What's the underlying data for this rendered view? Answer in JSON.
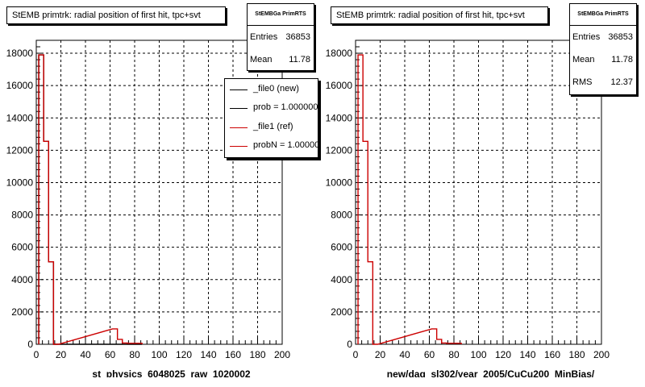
{
  "chart_data": [
    {
      "type": "bar",
      "title": "StEMB primtrk: radial position of first hit, tpc+svt",
      "xlabel": "st_physics_6048025_raw_1020002",
      "ylabel": "",
      "xlim": [
        0,
        200
      ],
      "ylim": [
        0,
        18800
      ],
      "x_ticks": [
        "0",
        "20",
        "40",
        "60",
        "80",
        "100",
        "120",
        "140",
        "160",
        "180",
        "200"
      ],
      "y_ticks": [
        "0",
        "2000",
        "4000",
        "6000",
        "8000",
        "10000",
        "12000",
        "14000",
        "16000",
        "18000"
      ],
      "grid": true,
      "bin_width": 4,
      "series": [
        {
          "name": "_file0 (new)",
          "color": "#000000",
          "x": [
            4,
            8,
            12,
            16,
            64,
            68,
            72,
            76,
            80,
            84
          ],
          "values": [
            17900,
            12550,
            5100,
            0,
            0,
            0,
            0,
            0,
            0,
            0
          ]
        },
        {
          "name": "_file1 (ref)",
          "color": "#cc0000",
          "x": [
            4,
            8,
            12,
            16,
            64,
            68,
            72,
            76,
            80,
            84
          ],
          "values": [
            17900,
            12550,
            5100,
            0,
            950,
            300,
            80,
            60,
            60,
            60
          ]
        }
      ],
      "stats": {
        "name": "StEMBGa PrimRTS",
        "entries_label": "Entries",
        "entries": "36853",
        "mean_label": "Mean",
        "mean": "11.78"
      },
      "legend": {
        "position": "right",
        "entries": [
          {
            "label": "_file0 (new)",
            "color": "#000000"
          },
          {
            "label": "prob = 1.000000",
            "color": "#000000"
          },
          {
            "label": "_file1 (ref)",
            "color": "#cc0000"
          },
          {
            "label": "probN = 1.000000",
            "color": "#cc0000"
          }
        ]
      }
    },
    {
      "type": "bar",
      "title": "StEMB primtrk: radial position of first hit, tpc+svt",
      "xlabel": "new/daq_sl302/year_2005/CuCu200_MinBias/",
      "ylabel": "",
      "xlim": [
        0,
        200
      ],
      "ylim": [
        0,
        18800
      ],
      "x_ticks": [
        "0",
        "20",
        "40",
        "60",
        "80",
        "100",
        "120",
        "140",
        "160",
        "180",
        "200"
      ],
      "y_ticks": [
        "0",
        "2000",
        "4000",
        "6000",
        "8000",
        "10000",
        "12000",
        "14000",
        "16000",
        "18000"
      ],
      "grid": true,
      "bin_width": 4,
      "series": [
        {
          "name": "_file1 (ref)",
          "color": "#cc0000",
          "x": [
            4,
            8,
            12,
            16,
            64,
            68,
            72,
            76,
            80,
            84
          ],
          "values": [
            17900,
            12550,
            5100,
            0,
            950,
            300,
            80,
            60,
            60,
            60
          ]
        }
      ],
      "stats": {
        "name": "StEMBGa PrimRTS",
        "entries_label": "Entries",
        "entries": "36853",
        "mean_label": "Mean",
        "mean": "11.78",
        "rms_label": "RMS",
        "rms": "12.37"
      }
    }
  ]
}
